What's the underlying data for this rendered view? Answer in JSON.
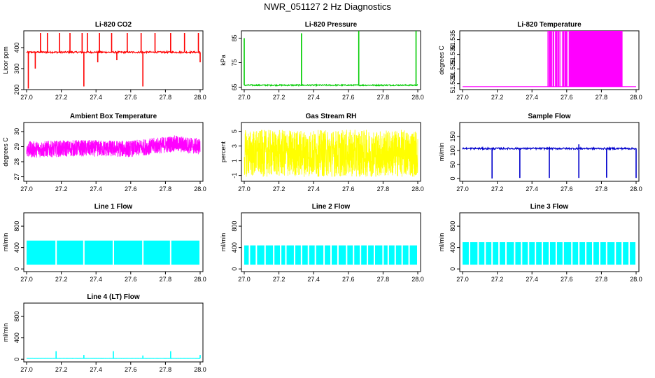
{
  "page": {
    "title": "NWR_051127  2 Hz Diagnostics"
  },
  "chart_data": [
    {
      "id": "co2",
      "type": "line",
      "title": "Li-820 CO2",
      "ylabel": "Licor ppm",
      "color": "#ff0000",
      "xlim": [
        27.0,
        28.0
      ],
      "ylim": [
        200,
        480
      ],
      "xticks": [
        "27.0",
        "27.2",
        "27.4",
        "27.6",
        "27.8",
        "28.0"
      ],
      "yticks": [
        200,
        300,
        400
      ],
      "series": [
        {
          "kind": "spiky",
          "baseline": 378,
          "noise": 4,
          "spikes_up": [
            [
              27.08,
              470
            ],
            [
              27.12,
              470
            ],
            [
              27.19,
              470
            ],
            [
              27.25,
              470
            ],
            [
              27.32,
              470
            ],
            [
              27.35,
              470
            ],
            [
              27.42,
              470
            ],
            [
              27.49,
              470
            ],
            [
              27.58,
              470
            ],
            [
              27.66,
              470
            ],
            [
              27.74,
              470
            ],
            [
              27.83,
              470
            ],
            [
              27.91,
              470
            ],
            [
              27.99,
              470
            ]
          ],
          "spikes_down": [
            [
              27.01,
              205
            ],
            [
              27.05,
              300
            ],
            [
              27.33,
              215
            ],
            [
              27.41,
              330
            ],
            [
              27.67,
              215
            ],
            [
              27.52,
              340
            ],
            [
              28.0,
              330
            ]
          ]
        }
      ]
    },
    {
      "id": "pressure",
      "type": "line",
      "title": "Li-820 Pressure",
      "ylabel": "kPa",
      "color": "#00cc00",
      "xlim": [
        27.0,
        28.0
      ],
      "ylim": [
        64,
        88
      ],
      "xticks": [
        "27.0",
        "27.2",
        "27.4",
        "27.6",
        "27.8",
        "28.0"
      ],
      "yticks": [
        65,
        75,
        85
      ],
      "series": [
        {
          "kind": "spiky",
          "baseline": 65.8,
          "noise": 0.25,
          "spikes_up": [
            [
              27.0,
              85
            ],
            [
              27.33,
              87
            ],
            [
              27.66,
              88
            ],
            [
              27.99,
              88
            ]
          ],
          "spikes_down": []
        }
      ]
    },
    {
      "id": "temperature",
      "type": "line",
      "title": "Li-820 Temperature",
      "ylabel": "degrees C",
      "color": "#ff00ff",
      "xlim": [
        27.0,
        28.0
      ],
      "ylim": [
        51.518,
        51.538
      ],
      "xticks": [
        "27.0",
        "27.2",
        "27.4",
        "27.6",
        "27.8",
        "28.0"
      ],
      "yticks": [
        51.52,
        51.525,
        51.53,
        51.535
      ],
      "ytick_labels": [
        "51.520",
        "51.525",
        "51.530",
        "51.535"
      ],
      "series": [
        {
          "kind": "toggle",
          "low": 51.519,
          "high": 51.538,
          "regions": [
            [
              27.49,
              27.62,
              0.15
            ],
            [
              27.62,
              27.72,
              0.45
            ],
            [
              27.72,
              27.9,
              0.9
            ],
            [
              27.9,
              27.92,
              0.3
            ]
          ]
        }
      ]
    },
    {
      "id": "ambient",
      "type": "line",
      "title": "Ambient Box Temperature",
      "ylabel": "degrees C",
      "color": "#ff00ff",
      "xlim": [
        27.0,
        28.0
      ],
      "ylim": [
        26.7,
        30.6
      ],
      "xticks": [
        "27.0",
        "27.2",
        "27.4",
        "27.6",
        "27.8",
        "28.0"
      ],
      "yticks": [
        27,
        28,
        29,
        30
      ],
      "series": [
        {
          "kind": "noise",
          "center": [
            [
              27.0,
              28.8
            ],
            [
              27.3,
              28.9
            ],
            [
              27.6,
              28.85
            ],
            [
              27.85,
              29.2
            ],
            [
              28.0,
              29.0
            ]
          ],
          "amp": 0.55
        }
      ]
    },
    {
      "id": "rh",
      "type": "line",
      "title": "Gas Stream RH",
      "ylabel": "percent",
      "color": "#ffff00",
      "xlim": [
        27.0,
        28.0
      ],
      "ylim": [
        -1.8,
        6.2
      ],
      "xticks": [
        "27.0",
        "27.2",
        "27.4",
        "27.6",
        "27.8",
        "28.0"
      ],
      "yticks": [
        -1,
        1,
        3,
        5
      ],
      "series": [
        {
          "kind": "noise",
          "center": [
            [
              27.0,
              2.0
            ],
            [
              28.0,
              2.0
            ]
          ],
          "amp": 3.2
        }
      ]
    },
    {
      "id": "sample",
      "type": "line",
      "title": "Sample Flow",
      "ylabel": "ml/min",
      "color": "#0000cc",
      "xlim": [
        27.0,
        28.0
      ],
      "ylim": [
        -10,
        200
      ],
      "xticks": [
        "27.0",
        "27.2",
        "27.4",
        "27.6",
        "27.8",
        "28.0"
      ],
      "yticks": [
        0,
        50,
        100,
        150
      ],
      "series": [
        {
          "kind": "spiky",
          "baseline": 107,
          "noise": 3,
          "spikes_up": [
            [
              27.67,
              122
            ]
          ],
          "spikes_down": [
            [
              27.17,
              0
            ],
            [
              27.33,
              2
            ],
            [
              27.5,
              2
            ],
            [
              27.67,
              2
            ],
            [
              27.83,
              3
            ],
            [
              28.0,
              2
            ]
          ]
        }
      ]
    },
    {
      "id": "line1",
      "type": "area",
      "title": "Line 1 Flow",
      "ylabel": "ml/min",
      "color": "#00ffff",
      "xlim": [
        27.0,
        28.0
      ],
      "ylim": [
        -50,
        1050
      ],
      "xticks": [
        "27.0",
        "27.2",
        "27.4",
        "27.6",
        "27.8",
        "28.0"
      ],
      "yticks": [
        0,
        400,
        800
      ],
      "series": [
        {
          "kind": "band",
          "low": 80,
          "high": 530,
          "gaps": [
            27.17,
            27.33,
            27.5,
            27.67,
            27.83
          ]
        }
      ]
    },
    {
      "id": "line2",
      "type": "area",
      "title": "Line 2 Flow",
      "ylabel": "ml/min",
      "color": "#00ffff",
      "xlim": [
        27.0,
        28.0
      ],
      "ylim": [
        -50,
        1050
      ],
      "xticks": [
        "27.0",
        "27.2",
        "27.4",
        "27.6",
        "27.8",
        "28.0"
      ],
      "yticks": [
        0,
        400,
        800
      ],
      "series": [
        {
          "kind": "band",
          "low": 80,
          "high": 440,
          "gaps": [
            27.03,
            27.07,
            27.12,
            27.17,
            27.21,
            27.24,
            27.29,
            27.33,
            27.37,
            27.41,
            27.46,
            27.5,
            27.54,
            27.59,
            27.63,
            27.67,
            27.71,
            27.75,
            27.8,
            27.83,
            27.87,
            27.91,
            27.95
          ]
        }
      ]
    },
    {
      "id": "line3",
      "type": "area",
      "title": "Line 3 Flow",
      "ylabel": "ml/min",
      "color": "#00ffff",
      "xlim": [
        27.0,
        28.0
      ],
      "ylim": [
        -50,
        1050
      ],
      "xticks": [
        "27.0",
        "27.2",
        "27.4",
        "27.6",
        "27.8",
        "28.0"
      ],
      "yticks": [
        0,
        400,
        800
      ],
      "series": [
        {
          "kind": "band",
          "low": 80,
          "high": 500,
          "gaps": [
            27.04,
            27.09,
            27.13,
            27.17,
            27.21,
            27.25,
            27.3,
            27.34,
            27.38,
            27.42,
            27.46,
            27.5,
            27.54,
            27.58,
            27.63,
            27.67,
            27.71,
            27.75,
            27.79,
            27.83,
            27.88,
            27.92,
            27.96
          ]
        }
      ]
    },
    {
      "id": "line4",
      "type": "line",
      "title": "Line 4 (LT) Flow",
      "ylabel": "ml/min",
      "color": "#00ffff",
      "xlim": [
        27.0,
        28.0
      ],
      "ylim": [
        -50,
        1050
      ],
      "xticks": [
        "27.0",
        "27.2",
        "27.4",
        "27.6",
        "27.8",
        "28.0"
      ],
      "yticks": [
        0,
        400,
        800
      ],
      "series": [
        {
          "kind": "spiky",
          "baseline": 15,
          "noise": 1,
          "spikes_up": [
            [
              27.17,
              150
            ],
            [
              27.33,
              80
            ],
            [
              27.5,
              150
            ],
            [
              27.67,
              70
            ],
            [
              27.83,
              150
            ],
            [
              28.0,
              80
            ]
          ],
          "spikes_down": []
        }
      ]
    }
  ]
}
